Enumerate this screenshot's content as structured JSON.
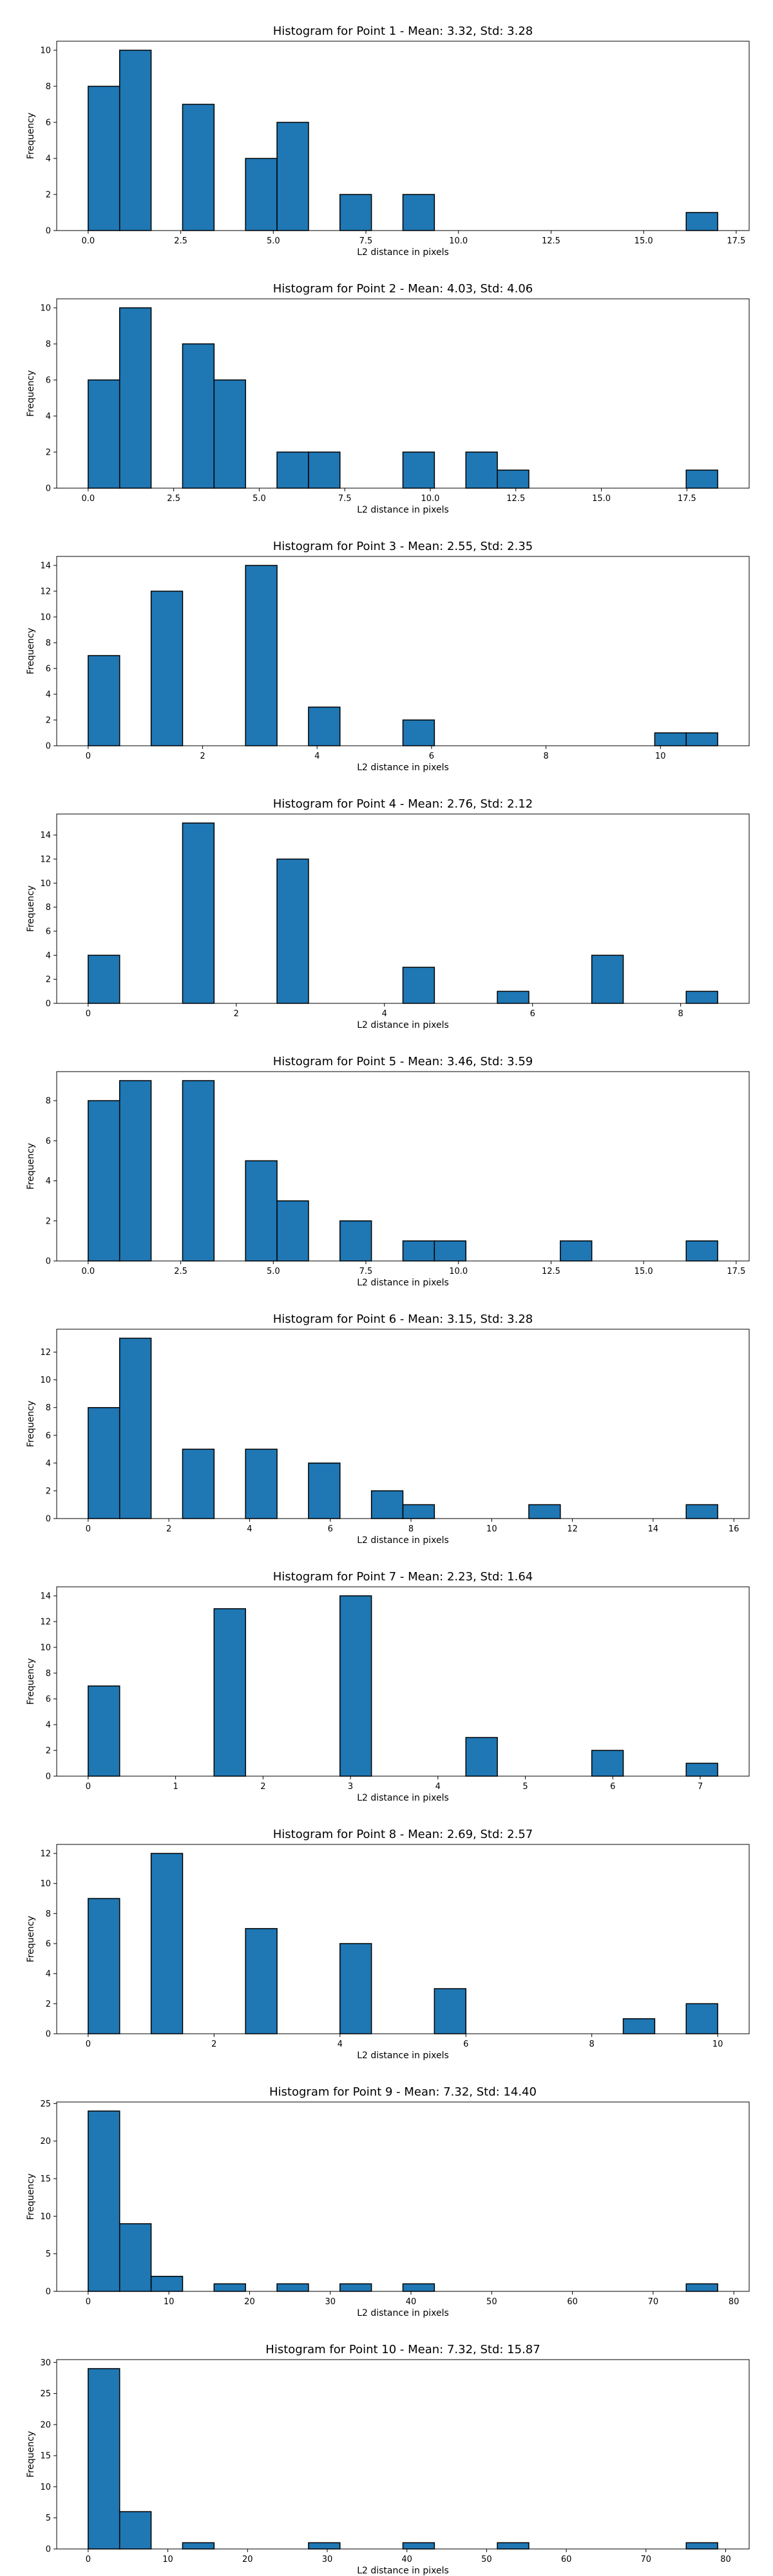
{
  "chart_data": [
    {
      "type": "bar",
      "title": "Histogram for Point 1 - Mean: 3.32, Std: 3.28",
      "xlabel": "L2 distance in pixels",
      "ylabel": "Frequency",
      "xlim": [
        -0.85,
        17.85
      ],
      "ylim": [
        0,
        10.5
      ],
      "xticks": [
        0.0,
        2.5,
        5.0,
        7.5,
        10.0,
        12.5,
        15.0,
        17.5
      ],
      "xtick_labels": [
        "0.0",
        "2.5",
        "5.0",
        "7.5",
        "10.0",
        "12.5",
        "15.0",
        "17.5"
      ],
      "yticks": [
        0,
        2,
        4,
        6,
        8,
        10
      ],
      "ytick_labels": [
        "0",
        "2",
        "4",
        "6",
        "8",
        "10"
      ],
      "bins": [
        {
          "x0": 0.0,
          "x1": 0.85,
          "value": 8
        },
        {
          "x0": 0.85,
          "x1": 1.7,
          "value": 10
        },
        {
          "x0": 2.55,
          "x1": 3.4,
          "value": 7
        },
        {
          "x0": 4.25,
          "x1": 5.1,
          "value": 4
        },
        {
          "x0": 5.1,
          "x1": 5.95,
          "value": 6
        },
        {
          "x0": 6.8,
          "x1": 7.65,
          "value": 2
        },
        {
          "x0": 8.5,
          "x1": 9.35,
          "value": 2
        },
        {
          "x0": 16.15,
          "x1": 17.0,
          "value": 1
        }
      ]
    },
    {
      "type": "bar",
      "title": "Histogram for Point 2 - Mean: 4.03, Std: 4.06",
      "xlabel": "L2 distance in pixels",
      "ylabel": "Frequency",
      "xlim": [
        -0.92,
        19.32
      ],
      "ylim": [
        0,
        10.5
      ],
      "xticks": [
        0.0,
        2.5,
        5.0,
        7.5,
        10.0,
        12.5,
        15.0,
        17.5
      ],
      "xtick_labels": [
        "0.0",
        "2.5",
        "5.0",
        "7.5",
        "10.0",
        "12.5",
        "15.0",
        "17.5"
      ],
      "yticks": [
        0,
        2,
        4,
        6,
        8,
        10
      ],
      "ytick_labels": [
        "0",
        "2",
        "4",
        "6",
        "8",
        "10"
      ],
      "bins": [
        {
          "x0": 0.0,
          "x1": 0.92,
          "value": 6
        },
        {
          "x0": 0.92,
          "x1": 1.84,
          "value": 10
        },
        {
          "x0": 2.76,
          "x1": 3.68,
          "value": 8
        },
        {
          "x0": 3.68,
          "x1": 4.6,
          "value": 6
        },
        {
          "x0": 5.52,
          "x1": 6.44,
          "value": 2
        },
        {
          "x0": 6.44,
          "x1": 7.36,
          "value": 2
        },
        {
          "x0": 9.2,
          "x1": 10.12,
          "value": 2
        },
        {
          "x0": 11.04,
          "x1": 11.96,
          "value": 2
        },
        {
          "x0": 11.96,
          "x1": 12.88,
          "value": 1
        },
        {
          "x0": 17.48,
          "x1": 18.4,
          "value": 1
        }
      ]
    },
    {
      "type": "bar",
      "title": "Histogram for Point 3 - Mean: 2.55, Std: 2.35",
      "xlabel": "L2 distance in pixels",
      "ylabel": "Frequency",
      "xlim": [
        -0.55,
        11.55
      ],
      "ylim": [
        0,
        14.7
      ],
      "xticks": [
        0,
        2,
        4,
        6,
        8,
        10
      ],
      "xtick_labels": [
        "0",
        "2",
        "4",
        "6",
        "8",
        "10"
      ],
      "yticks": [
        0,
        2,
        4,
        6,
        8,
        10,
        12,
        14
      ],
      "ytick_labels": [
        "0",
        "2",
        "4",
        "6",
        "8",
        "10",
        "12",
        "14"
      ],
      "bins": [
        {
          "x0": 0.0,
          "x1": 0.55,
          "value": 7
        },
        {
          "x0": 1.1,
          "x1": 1.65,
          "value": 12
        },
        {
          "x0": 2.75,
          "x1": 3.3,
          "value": 14
        },
        {
          "x0": 3.85,
          "x1": 4.4,
          "value": 3
        },
        {
          "x0": 5.5,
          "x1": 6.05,
          "value": 2
        },
        {
          "x0": 9.9,
          "x1": 10.45,
          "value": 1
        },
        {
          "x0": 10.45,
          "x1": 11.0,
          "value": 1
        }
      ]
    },
    {
      "type": "bar",
      "title": "Histogram for Point 4 - Mean: 2.76, Std: 2.12",
      "xlabel": "L2 distance in pixels",
      "ylabel": "Frequency",
      "xlim": [
        -0.425,
        8.925
      ],
      "ylim": [
        0,
        15.75
      ],
      "xticks": [
        0,
        2,
        4,
        6,
        8
      ],
      "xtick_labels": [
        "0",
        "2",
        "4",
        "6",
        "8"
      ],
      "yticks": [
        0,
        2,
        4,
        6,
        8,
        10,
        12,
        14
      ],
      "ytick_labels": [
        "0",
        "2",
        "4",
        "6",
        "8",
        "10",
        "12",
        "14"
      ],
      "bins": [
        {
          "x0": 0.0,
          "x1": 0.425,
          "value": 4
        },
        {
          "x0": 1.275,
          "x1": 1.7,
          "value": 15
        },
        {
          "x0": 2.55,
          "x1": 2.975,
          "value": 12
        },
        {
          "x0": 4.25,
          "x1": 4.675,
          "value": 3
        },
        {
          "x0": 5.525,
          "x1": 5.95,
          "value": 1
        },
        {
          "x0": 6.8,
          "x1": 7.225,
          "value": 4
        },
        {
          "x0": 8.075,
          "x1": 8.5,
          "value": 1
        }
      ]
    },
    {
      "type": "bar",
      "title": "Histogram for Point 5 - Mean: 3.46, Std: 3.59",
      "xlabel": "L2 distance in pixels",
      "ylabel": "Frequency",
      "xlim": [
        -0.85,
        17.85
      ],
      "ylim": [
        0,
        9.45
      ],
      "xticks": [
        0.0,
        2.5,
        5.0,
        7.5,
        10.0,
        12.5,
        15.0,
        17.5
      ],
      "xtick_labels": [
        "0.0",
        "2.5",
        "5.0",
        "7.5",
        "10.0",
        "12.5",
        "15.0",
        "17.5"
      ],
      "yticks": [
        0,
        2,
        4,
        6,
        8
      ],
      "ytick_labels": [
        "0",
        "2",
        "4",
        "6",
        "8"
      ],
      "bins": [
        {
          "x0": 0.0,
          "x1": 0.85,
          "value": 8
        },
        {
          "x0": 0.85,
          "x1": 1.7,
          "value": 9
        },
        {
          "x0": 2.55,
          "x1": 3.4,
          "value": 9
        },
        {
          "x0": 4.25,
          "x1": 5.1,
          "value": 5
        },
        {
          "x0": 5.1,
          "x1": 5.95,
          "value": 3
        },
        {
          "x0": 6.8,
          "x1": 7.65,
          "value": 2
        },
        {
          "x0": 8.5,
          "x1": 9.35,
          "value": 1
        },
        {
          "x0": 9.35,
          "x1": 10.2,
          "value": 1
        },
        {
          "x0": 12.75,
          "x1": 13.6,
          "value": 1
        },
        {
          "x0": 16.15,
          "x1": 17.0,
          "value": 1
        }
      ]
    },
    {
      "type": "bar",
      "title": "Histogram for Point 6 - Mean: 3.15, Std: 3.28",
      "xlabel": "L2 distance in pixels",
      "ylabel": "Frequency",
      "xlim": [
        -0.78,
        16.38
      ],
      "ylim": [
        0,
        13.65
      ],
      "xticks": [
        0,
        2,
        4,
        6,
        8,
        10,
        12,
        14,
        16
      ],
      "xtick_labels": [
        "0",
        "2",
        "4",
        "6",
        "8",
        "10",
        "12",
        "14",
        "16"
      ],
      "yticks": [
        0,
        2,
        4,
        6,
        8,
        10,
        12
      ],
      "ytick_labels": [
        "0",
        "2",
        "4",
        "6",
        "8",
        "10",
        "12"
      ],
      "bins": [
        {
          "x0": 0.0,
          "x1": 0.78,
          "value": 8
        },
        {
          "x0": 0.78,
          "x1": 1.56,
          "value": 13
        },
        {
          "x0": 2.34,
          "x1": 3.12,
          "value": 5
        },
        {
          "x0": 3.9,
          "x1": 4.68,
          "value": 5
        },
        {
          "x0": 5.46,
          "x1": 6.24,
          "value": 4
        },
        {
          "x0": 7.02,
          "x1": 7.8,
          "value": 2
        },
        {
          "x0": 7.8,
          "x1": 8.58,
          "value": 1
        },
        {
          "x0": 10.92,
          "x1": 11.7,
          "value": 1
        },
        {
          "x0": 14.82,
          "x1": 15.6,
          "value": 1
        }
      ]
    },
    {
      "type": "bar",
      "title": "Histogram for Point 7 - Mean: 2.23, Std: 1.64",
      "xlabel": "L2 distance in pixels",
      "ylabel": "Frequency",
      "xlim": [
        -0.36,
        7.56
      ],
      "ylim": [
        0,
        14.7
      ],
      "xticks": [
        0,
        1,
        2,
        3,
        4,
        5,
        6,
        7
      ],
      "xtick_labels": [
        "0",
        "1",
        "2",
        "3",
        "4",
        "5",
        "6",
        "7"
      ],
      "yticks": [
        0,
        2,
        4,
        6,
        8,
        10,
        12,
        14
      ],
      "ytick_labels": [
        "0",
        "2",
        "4",
        "6",
        "8",
        "10",
        "12",
        "14"
      ],
      "bins": [
        {
          "x0": 0.0,
          "x1": 0.36,
          "value": 7
        },
        {
          "x0": 1.44,
          "x1": 1.8,
          "value": 13
        },
        {
          "x0": 2.88,
          "x1": 3.24,
          "value": 14
        },
        {
          "x0": 4.32,
          "x1": 4.68,
          "value": 3
        },
        {
          "x0": 5.76,
          "x1": 6.12,
          "value": 2
        },
        {
          "x0": 6.84,
          "x1": 7.2,
          "value": 1
        }
      ]
    },
    {
      "type": "bar",
      "title": "Histogram for Point 8 - Mean: 2.69, Std: 2.57",
      "xlabel": "L2 distance in pixels",
      "ylabel": "Frequency",
      "xlim": [
        -0.5,
        10.5
      ],
      "ylim": [
        0,
        12.6
      ],
      "xticks": [
        0,
        2,
        4,
        6,
        8,
        10
      ],
      "xtick_labels": [
        "0",
        "2",
        "4",
        "6",
        "8",
        "10"
      ],
      "yticks": [
        0,
        2,
        4,
        6,
        8,
        10,
        12
      ],
      "ytick_labels": [
        "0",
        "2",
        "4",
        "6",
        "8",
        "10",
        "12"
      ],
      "bins": [
        {
          "x0": 0.0,
          "x1": 0.5,
          "value": 9
        },
        {
          "x0": 1.0,
          "x1": 1.5,
          "value": 12
        },
        {
          "x0": 2.5,
          "x1": 3.0,
          "value": 7
        },
        {
          "x0": 4.0,
          "x1": 4.5,
          "value": 6
        },
        {
          "x0": 5.5,
          "x1": 6.0,
          "value": 3
        },
        {
          "x0": 8.5,
          "x1": 9.0,
          "value": 1
        },
        {
          "x0": 9.5,
          "x1": 10.0,
          "value": 2
        }
      ]
    },
    {
      "type": "bar",
      "title": "Histogram for Point 9 - Mean: 7.32, Std: 14.40",
      "xlabel": "L2 distance in pixels",
      "ylabel": "Frequency",
      "xlim": [
        -3.9,
        81.9
      ],
      "ylim": [
        0,
        25.2
      ],
      "xticks": [
        0,
        10,
        20,
        30,
        40,
        50,
        60,
        70,
        80
      ],
      "xtick_labels": [
        "0",
        "10",
        "20",
        "30",
        "40",
        "50",
        "60",
        "70",
        "80"
      ],
      "yticks": [
        0,
        5,
        10,
        15,
        20,
        25
      ],
      "ytick_labels": [
        "0",
        "5",
        "10",
        "15",
        "20",
        "25"
      ],
      "bins": [
        {
          "x0": 0.0,
          "x1": 3.9,
          "value": 24
        },
        {
          "x0": 3.9,
          "x1": 7.8,
          "value": 9
        },
        {
          "x0": 7.8,
          "x1": 11.7,
          "value": 2
        },
        {
          "x0": 15.6,
          "x1": 19.5,
          "value": 1
        },
        {
          "x0": 23.4,
          "x1": 27.3,
          "value": 1
        },
        {
          "x0": 31.2,
          "x1": 35.1,
          "value": 1
        },
        {
          "x0": 39.0,
          "x1": 42.9,
          "value": 1
        },
        {
          "x0": 74.1,
          "x1": 78.0,
          "value": 1
        }
      ]
    },
    {
      "type": "bar",
      "title": "Histogram for Point 10 - Mean: 7.32, Std: 15.87",
      "xlabel": "L2 distance in pixels",
      "ylabel": "Frequency",
      "xlim": [
        -3.95,
        82.95
      ],
      "ylim": [
        0,
        30.45
      ],
      "xticks": [
        0,
        10,
        20,
        30,
        40,
        50,
        60,
        70,
        80
      ],
      "xtick_labels": [
        "0",
        "10",
        "20",
        "30",
        "40",
        "50",
        "60",
        "70",
        "80"
      ],
      "yticks": [
        0,
        5,
        10,
        15,
        20,
        25,
        30
      ],
      "ytick_labels": [
        "0",
        "5",
        "10",
        "15",
        "20",
        "25",
        "30"
      ],
      "bins": [
        {
          "x0": 0.0,
          "x1": 3.95,
          "value": 29
        },
        {
          "x0": 3.95,
          "x1": 7.9,
          "value": 6
        },
        {
          "x0": 11.85,
          "x1": 15.8,
          "value": 1
        },
        {
          "x0": 27.65,
          "x1": 31.6,
          "value": 1
        },
        {
          "x0": 39.5,
          "x1": 43.45,
          "value": 1
        },
        {
          "x0": 51.35,
          "x1": 55.3,
          "value": 1
        },
        {
          "x0": 75.05,
          "x1": 79.0,
          "value": 1
        }
      ]
    }
  ]
}
